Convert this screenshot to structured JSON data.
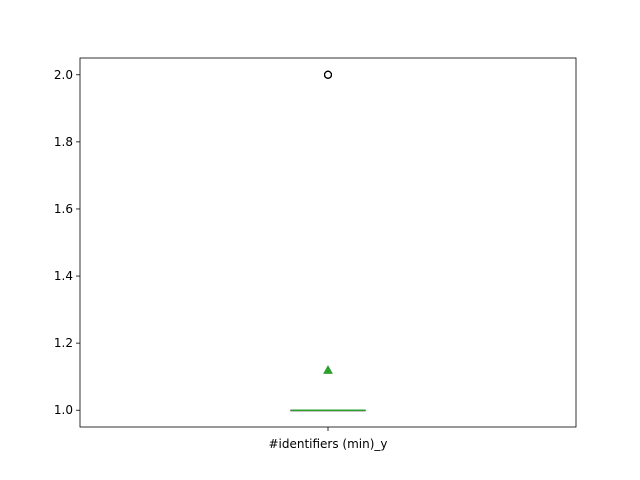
{
  "chart_data": {
    "type": "box",
    "categories": [
      "#identifiers (min)_y"
    ],
    "boxes": [
      {
        "category": "#identifiers (min)_y",
        "whisker_low": 1.0,
        "q1": 1.0,
        "median": 1.0,
        "q3": 1.0,
        "whisker_high": 1.0,
        "mean": 1.12,
        "outliers": [
          2.0,
          2.0,
          2.0,
          2.0,
          2.0
        ]
      }
    ],
    "ylim": [
      0.95,
      2.05
    ],
    "yticks": [
      1.0,
      1.2,
      1.4,
      1.6,
      1.8,
      2.0
    ],
    "ytick_labels": [
      "1.0",
      "1.2",
      "1.4",
      "1.6",
      "1.8",
      "2.0"
    ],
    "grid": false,
    "colors": {
      "median": "#2ca02c",
      "mean_marker": "#2ca02c",
      "box": "#000000",
      "outlier": "#000000"
    }
  }
}
